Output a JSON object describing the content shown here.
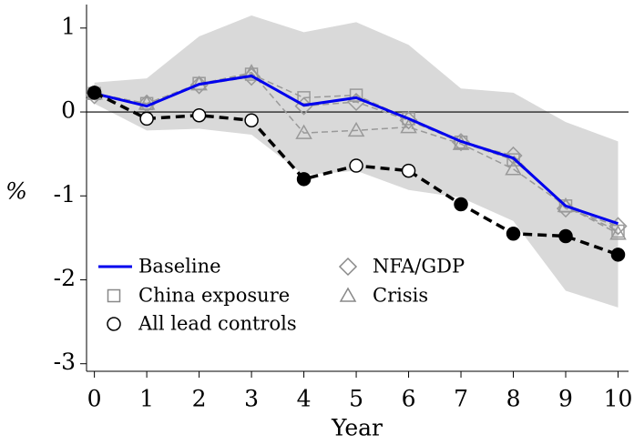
{
  "chart_data": {
    "type": "line",
    "x_label": "Year",
    "y_label": "%",
    "x": [
      0,
      1,
      2,
      3,
      4,
      5,
      6,
      7,
      8,
      9,
      10
    ],
    "xlim": [
      -0.15,
      10.2
    ],
    "xticks": [
      0,
      1,
      2,
      3,
      4,
      5,
      6,
      7,
      8,
      9,
      10
    ],
    "ylim": [
      -3.09,
      1.28
    ],
    "yticks": [
      -3,
      -2,
      -1,
      0,
      1
    ],
    "zero_line": true,
    "band": {
      "color": "#d9d9d9",
      "upper": [
        0.35,
        0.4,
        0.9,
        1.15,
        0.95,
        1.07,
        0.8,
        0.28,
        0.23,
        -0.12,
        -0.35
      ],
      "lower": [
        0.1,
        -0.22,
        -0.2,
        -0.27,
        -0.75,
        -0.7,
        -0.93,
        -1.02,
        -1.3,
        -2.13,
        -2.33
      ]
    },
    "series": [
      {
        "name": "Baseline",
        "color": "#0000ee",
        "marker": "none",
        "dashed": false,
        "width": 3,
        "values": [
          0.22,
          0.07,
          0.33,
          0.43,
          0.08,
          0.17,
          -0.08,
          -0.35,
          -0.55,
          -1.12,
          -1.33
        ]
      },
      {
        "name": "China exposure",
        "color": "#999999",
        "marker": "square",
        "dashed": true,
        "width": 1.5,
        "values": [
          0.22,
          0.1,
          0.34,
          0.45,
          0.17,
          0.2,
          -0.08,
          -0.36,
          -0.57,
          -1.12,
          -1.42
        ]
      },
      {
        "name": "All lead controls",
        "color": "#000000",
        "marker": "circle",
        "dashed": true,
        "width": 3.5,
        "values": [
          0.23,
          -0.08,
          -0.04,
          -0.1,
          -0.8,
          -0.64,
          -0.7,
          -1.1,
          -1.45,
          -1.48,
          -1.7
        ],
        "filled": [
          true,
          false,
          false,
          false,
          true,
          false,
          false,
          true,
          true,
          true,
          true
        ]
      },
      {
        "name": "NFA/GDP",
        "color": "#999999",
        "marker": "diamond",
        "dashed": true,
        "width": 1.5,
        "values": [
          0.2,
          0.1,
          0.32,
          0.42,
          0.07,
          0.12,
          -0.1,
          -0.36,
          -0.52,
          -1.15,
          -1.36
        ]
      },
      {
        "name": "Crisis",
        "color": "#999999",
        "marker": "triangle",
        "dashed": true,
        "width": 1.5,
        "values": [
          0.22,
          0.1,
          0.33,
          0.47,
          -0.25,
          -0.22,
          -0.18,
          -0.38,
          -0.68,
          -1.12,
          -1.45
        ]
      }
    ]
  }
}
